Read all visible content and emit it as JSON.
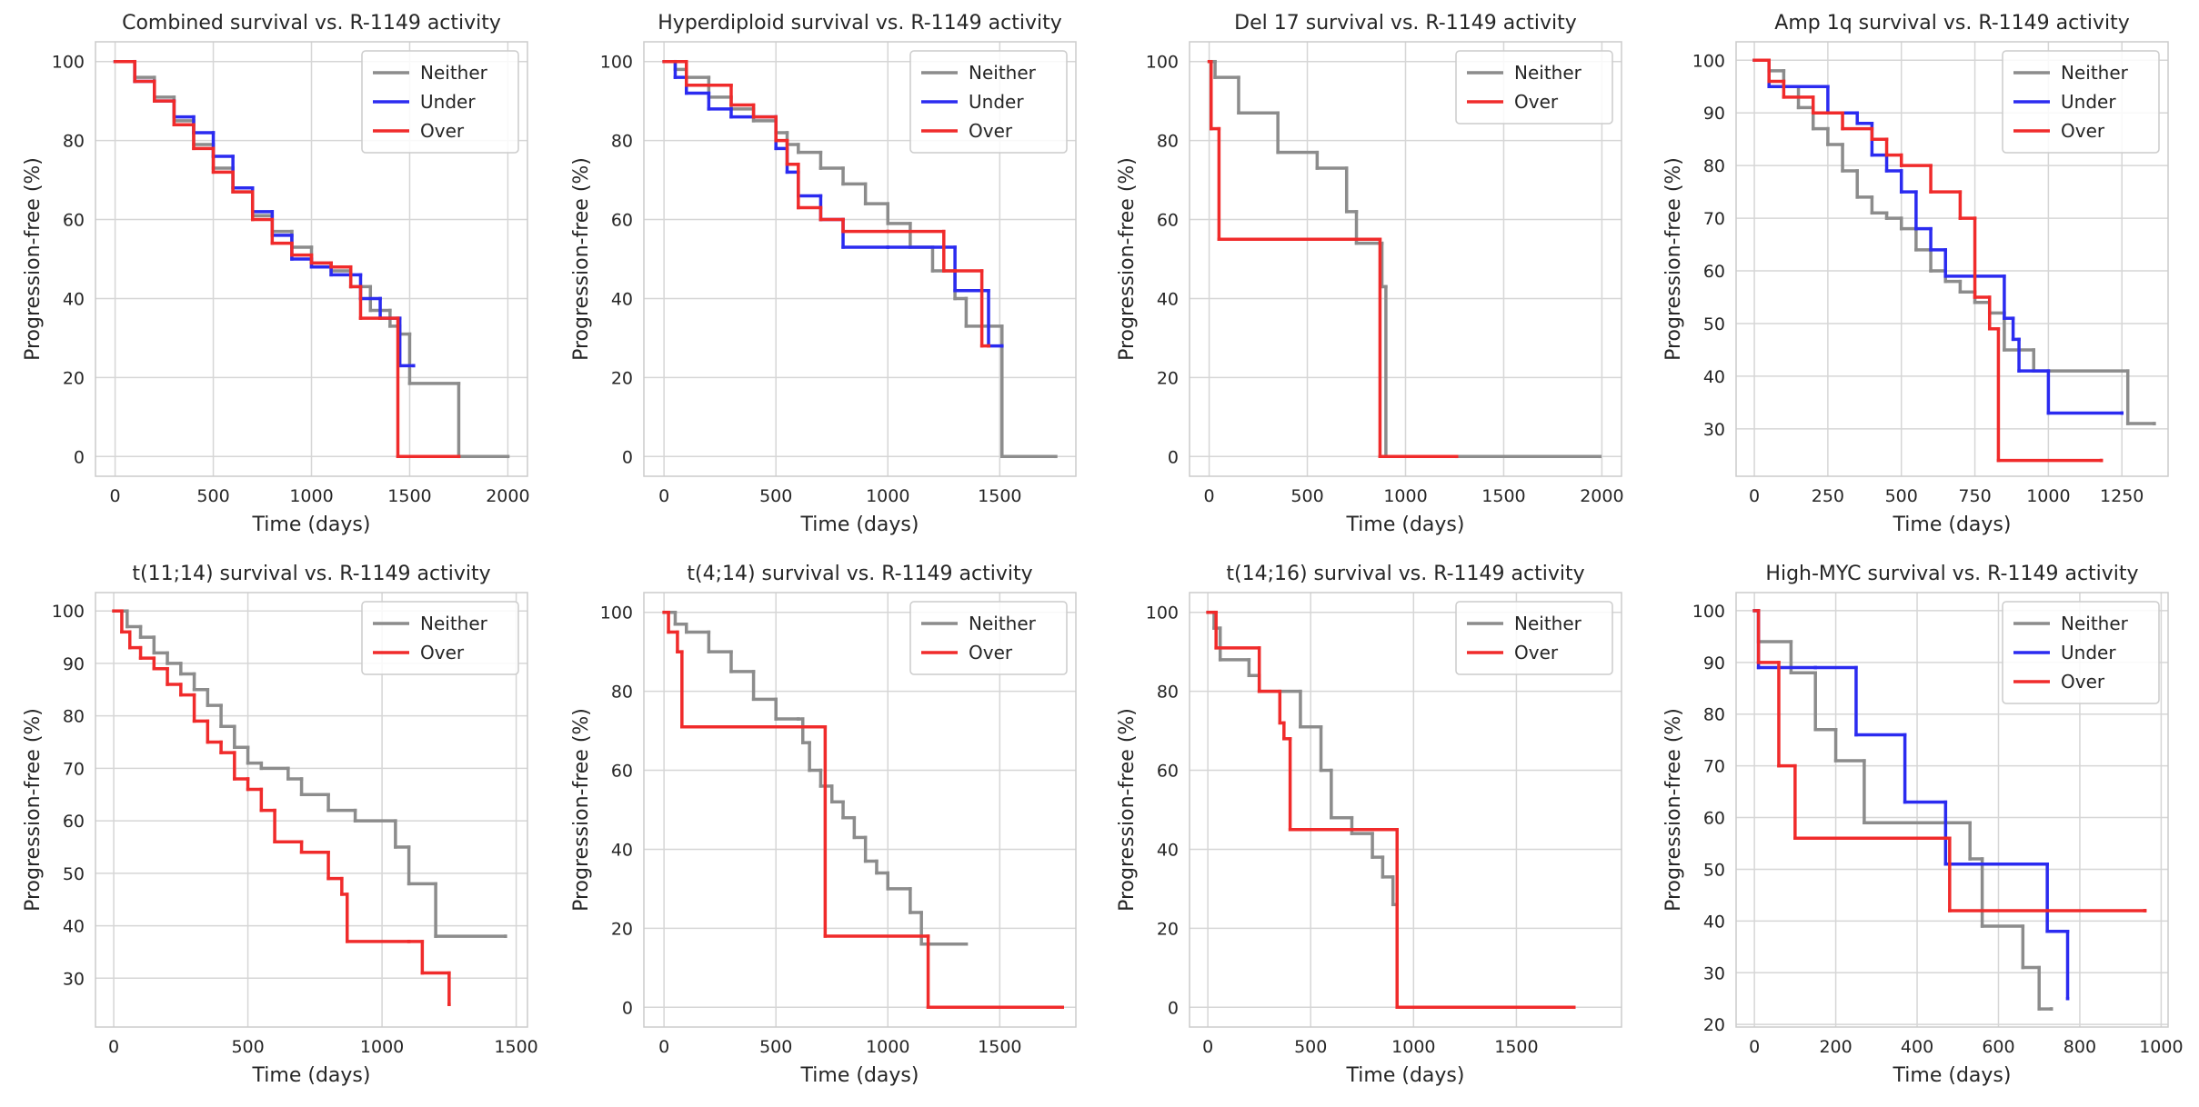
{
  "chart_data": [
    {
      "type": "line",
      "drawstyle": "steps-post",
      "title": "Combined survival vs. R-1149 activity",
      "xlabel": "Time (days)",
      "ylabel": "Progression-free (%)",
      "grid": true,
      "legend": "upper right",
      "xlim": [
        -100,
        2100
      ],
      "xticks": [
        0,
        500,
        1000,
        1500,
        2000
      ],
      "ylim": [
        -5,
        105
      ],
      "yticks": [
        0,
        20,
        40,
        60,
        80,
        100
      ],
      "series": [
        {
          "name": "Neither",
          "color": "#8c8c8c",
          "x": [
            0,
            100,
            200,
            300,
            400,
            500,
            600,
            700,
            800,
            900,
            1000,
            1100,
            1200,
            1300,
            1400,
            1450,
            1500,
            1750,
            2000
          ],
          "values": [
            100,
            96,
            91,
            85,
            79,
            73,
            67,
            61,
            57,
            53,
            49,
            47,
            43,
            37,
            33,
            31,
            18.5,
            0,
            0
          ]
        },
        {
          "name": "Under",
          "color": "#2b2bf0",
          "x": [
            0,
            100,
            200,
            300,
            400,
            500,
            600,
            700,
            800,
            900,
            1000,
            1100,
            1250,
            1350,
            1450,
            1520
          ],
          "values": [
            100,
            95,
            90,
            86,
            82,
            76,
            68,
            62,
            56,
            50,
            48,
            46,
            40,
            35,
            23,
            23
          ]
        },
        {
          "name": "Over",
          "color": "#f02b2b",
          "x": [
            0,
            100,
            200,
            300,
            400,
            500,
            600,
            700,
            800,
            900,
            1000,
            1100,
            1200,
            1250,
            1350,
            1440,
            1750
          ],
          "values": [
            100,
            95,
            90,
            84,
            78,
            72,
            67,
            60,
            54,
            51,
            49,
            48,
            43,
            35,
            35,
            0,
            0
          ]
        }
      ]
    },
    {
      "type": "line",
      "drawstyle": "steps-post",
      "title": "Hyperdiploid survival vs. R-1149 activity",
      "xlabel": "Time (days)",
      "ylabel": "Progression-free (%)",
      "grid": true,
      "legend": "upper right",
      "xlim": [
        -90,
        1840
      ],
      "xticks": [
        0,
        500,
        1000,
        1500
      ],
      "ylim": [
        -5,
        105
      ],
      "yticks": [
        0,
        20,
        40,
        60,
        80,
        100
      ],
      "series": [
        {
          "name": "Neither",
          "color": "#8c8c8c",
          "x": [
            0,
            50,
            100,
            200,
            300,
            400,
            500,
            550,
            600,
            700,
            800,
            900,
            1000,
            1100,
            1200,
            1300,
            1350,
            1510,
            1750
          ],
          "values": [
            100,
            98,
            96,
            91,
            88,
            85,
            82,
            79,
            77,
            73,
            69,
            64,
            59,
            53,
            47,
            40,
            33,
            0,
            0
          ]
        },
        {
          "name": "Under",
          "color": "#2b2bf0",
          "x": [
            0,
            50,
            100,
            200,
            300,
            400,
            500,
            550,
            600,
            700,
            800,
            1000,
            1250,
            1300,
            1410,
            1450,
            1510
          ],
          "values": [
            100,
            96,
            92,
            88,
            86,
            86,
            78,
            72,
            66,
            60,
            53,
            53,
            53,
            42,
            42,
            28,
            28
          ]
        },
        {
          "name": "Over",
          "color": "#f02b2b",
          "x": [
            0,
            100,
            200,
            300,
            400,
            500,
            550,
            600,
            700,
            800,
            1000,
            1250,
            1300,
            1420,
            1450
          ],
          "values": [
            100,
            94,
            94,
            89,
            86,
            80,
            74,
            63,
            60,
            57,
            57,
            47,
            47,
            28,
            28
          ]
        }
      ]
    },
    {
      "type": "line",
      "drawstyle": "steps-post",
      "title": "Del 17 survival vs. R-1149 activity",
      "xlabel": "Time (days)",
      "ylabel": "Progression-free (%)",
      "grid": true,
      "legend": "upper right",
      "xlim": [
        -100,
        2100
      ],
      "xticks": [
        0,
        500,
        1000,
        1500,
        2000
      ],
      "ylim": [
        -5,
        105
      ],
      "yticks": [
        0,
        20,
        40,
        60,
        80,
        100
      ],
      "series": [
        {
          "name": "Neither",
          "color": "#8c8c8c",
          "x": [
            0,
            30,
            150,
            350,
            550,
            700,
            750,
            880,
            900,
            1990
          ],
          "values": [
            100,
            96,
            87,
            77,
            73,
            62,
            54,
            43,
            0,
            0
          ]
        },
        {
          "name": "Over",
          "color": "#f02b2b",
          "x": [
            0,
            10,
            50,
            870,
            1260
          ],
          "values": [
            100,
            83,
            55,
            0,
            0
          ]
        }
      ]
    },
    {
      "type": "line",
      "drawstyle": "steps-post",
      "title": "Amp 1q survival vs. R-1149 activity",
      "xlabel": "Time (days)",
      "ylabel": "Progression-free (%)",
      "grid": true,
      "legend": "upper right",
      "xlim": [
        -62,
        1407
      ],
      "xticks": [
        0,
        250,
        500,
        750,
        1000,
        1250
      ],
      "ylim": [
        21,
        103.5
      ],
      "yticks": [
        30,
        40,
        50,
        60,
        70,
        80,
        90,
        100
      ],
      "series": [
        {
          "name": "Neither",
          "color": "#8c8c8c",
          "x": [
            0,
            50,
            100,
            150,
            200,
            250,
            300,
            350,
            400,
            450,
            500,
            550,
            600,
            650,
            700,
            750,
            800,
            850,
            950,
            1270,
            1360
          ],
          "values": [
            100,
            98,
            95,
            91,
            87,
            84,
            79,
            74,
            71,
            70,
            68,
            64,
            60,
            58,
            56,
            54,
            52,
            45,
            41,
            31,
            31
          ]
        },
        {
          "name": "Under",
          "color": "#2b2bf0",
          "x": [
            0,
            50,
            250,
            350,
            400,
            450,
            500,
            550,
            600,
            650,
            850,
            880,
            900,
            1000,
            1250
          ],
          "values": [
            100,
            95,
            90,
            88,
            82,
            79,
            75,
            68,
            64,
            59,
            51,
            47,
            41,
            33,
            33
          ]
        },
        {
          "name": "Over",
          "color": "#f02b2b",
          "x": [
            0,
            50,
            100,
            200,
            300,
            400,
            450,
            500,
            600,
            700,
            750,
            800,
            830,
            1180
          ],
          "values": [
            100,
            96,
            93,
            90,
            87,
            85,
            82,
            80,
            75,
            70,
            55,
            49,
            24,
            24
          ]
        }
      ]
    },
    {
      "type": "line",
      "drawstyle": "steps-post",
      "title": "t(11;14) survival vs. R-1149 activity",
      "xlabel": "Time (days)",
      "ylabel": "Progression-free (%)",
      "grid": true,
      "legend": "upper right",
      "xlim": [
        -68,
        1542
      ],
      "xticks": [
        0,
        500,
        1000,
        1500
      ],
      "ylim": [
        20.7,
        103.5
      ],
      "yticks": [
        30,
        40,
        50,
        60,
        70,
        80,
        90,
        100
      ],
      "series": [
        {
          "name": "Neither",
          "color": "#8c8c8c",
          "x": [
            0,
            50,
            100,
            150,
            200,
            250,
            300,
            350,
            400,
            450,
            500,
            550,
            650,
            700,
            800,
            900,
            1050,
            1100,
            1200,
            1460
          ],
          "values": [
            100,
            97,
            95,
            92,
            90,
            88,
            85,
            82,
            78,
            74,
            71,
            70,
            68,
            65,
            62,
            60,
            55,
            48,
            38,
            38
          ]
        },
        {
          "name": "Over",
          "color": "#f02b2b",
          "x": [
            0,
            30,
            60,
            100,
            150,
            200,
            250,
            300,
            350,
            400,
            450,
            500,
            550,
            600,
            700,
            800,
            850,
            870,
            1100,
            1150,
            1250
          ],
          "values": [
            100,
            96,
            93,
            91,
            89,
            86,
            84,
            79,
            75,
            73,
            68,
            66,
            62,
            56,
            54,
            49,
            46,
            37,
            37,
            31,
            25
          ]
        }
      ]
    },
    {
      "type": "line",
      "drawstyle": "steps-post",
      "title": "t(4;14) survival vs. R-1149 activity",
      "xlabel": "Time (days)",
      "ylabel": "Progression-free (%)",
      "grid": true,
      "legend": "upper right",
      "xlim": [
        -90,
        1840
      ],
      "xticks": [
        0,
        500,
        1000,
        1500
      ],
      "ylim": [
        -5,
        105
      ],
      "yticks": [
        0,
        20,
        40,
        60,
        80,
        100
      ],
      "series": [
        {
          "name": "Neither",
          "color": "#8c8c8c",
          "x": [
            0,
            50,
            100,
            200,
            300,
            400,
            500,
            600,
            620,
            650,
            700,
            750,
            800,
            850,
            900,
            950,
            1000,
            1100,
            1150,
            1350
          ],
          "values": [
            100,
            97,
            95,
            90,
            85,
            78,
            73,
            73,
            67,
            60,
            56,
            52,
            48,
            43,
            37,
            34,
            30,
            24,
            16,
            16
          ]
        },
        {
          "name": "Over",
          "color": "#f02b2b",
          "x": [
            0,
            20,
            60,
            80,
            720,
            1180,
            1780
          ],
          "values": [
            100,
            95,
            90,
            71,
            18,
            0,
            0
          ]
        }
      ]
    },
    {
      "type": "line",
      "drawstyle": "steps-post",
      "title": "t(14;16) survival vs. R-1149 activity",
      "xlabel": "Time (days)",
      "ylabel": "Progression-free (%)",
      "grid": true,
      "legend": "upper right",
      "xlim": [
        -89,
        2011
      ],
      "xticks": [
        0,
        500,
        1000,
        1500
      ],
      "ylim": [
        -5,
        105
      ],
      "yticks": [
        0,
        20,
        40,
        60,
        80,
        100
      ],
      "series": [
        {
          "name": "Neither",
          "color": "#8c8c8c",
          "x": [
            0,
            30,
            60,
            200,
            250,
            450,
            550,
            600,
            700,
            800,
            850,
            900,
            920
          ],
          "values": [
            100,
            96,
            88,
            84,
            80,
            71,
            60,
            48,
            44,
            38,
            33,
            26,
            26
          ]
        },
        {
          "name": "Over",
          "color": "#f02b2b",
          "x": [
            0,
            40,
            250,
            350,
            370,
            400,
            920,
            1780
          ],
          "values": [
            100,
            91,
            80,
            72,
            68,
            45,
            0,
            0
          ]
        }
      ]
    },
    {
      "type": "line",
      "drawstyle": "steps-post",
      "title": "High-MYC survival vs. R-1149 activity",
      "xlabel": "Time (days)",
      "ylabel": "Progression-free (%)",
      "grid": true,
      "legend": "upper right",
      "xlim": [
        -45,
        1017
      ],
      "xticks": [
        0,
        200,
        400,
        600,
        800,
        1000
      ],
      "ylim": [
        19.5,
        103.5
      ],
      "yticks": [
        20,
        30,
        40,
        50,
        60,
        70,
        80,
        90,
        100
      ],
      "series": [
        {
          "name": "Neither",
          "color": "#8c8c8c",
          "x": [
            0,
            10,
            90,
            150,
            200,
            270,
            490,
            530,
            560,
            660,
            700,
            730
          ],
          "values": [
            100,
            94,
            88,
            77,
            71,
            59,
            59,
            52,
            39,
            31,
            23,
            23
          ]
        },
        {
          "name": "Under",
          "color": "#2b2bf0",
          "x": [
            0,
            10,
            150,
            250,
            370,
            470,
            720,
            770
          ],
          "values": [
            100,
            89,
            89,
            76,
            63,
            51,
            38,
            25
          ]
        },
        {
          "name": "Over",
          "color": "#f02b2b",
          "x": [
            0,
            10,
            60,
            100,
            480,
            960
          ],
          "values": [
            100,
            90,
            70,
            56,
            42,
            42
          ]
        }
      ]
    }
  ]
}
